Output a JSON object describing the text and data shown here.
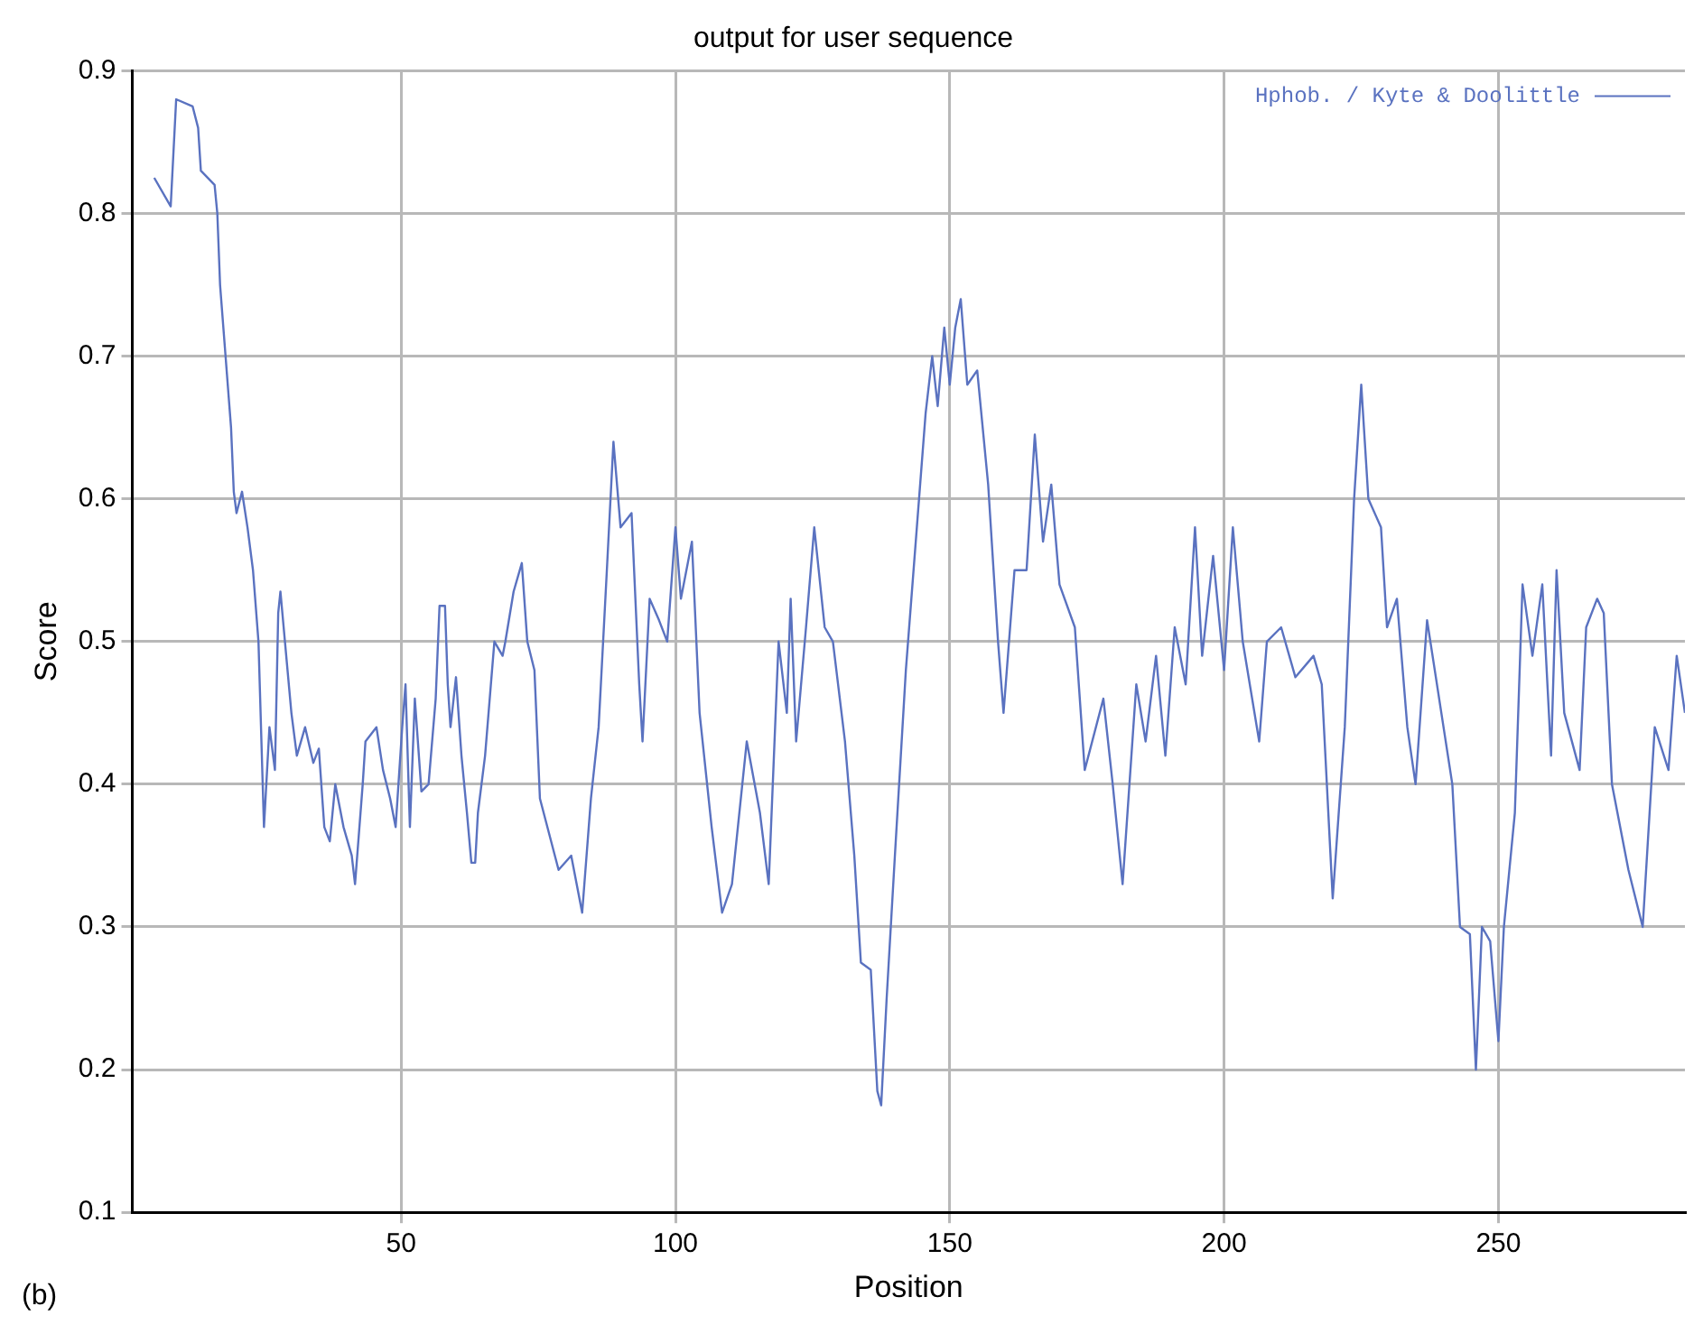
{
  "chart_data": {
    "type": "line",
    "title": "output for user sequence",
    "xlabel": "Position",
    "ylabel": "Score",
    "annotations": [
      "(b)"
    ],
    "xlim": [
      1,
      284
    ],
    "xticks": [
      50,
      100,
      150,
      200,
      250
    ],
    "ylim": [
      0.1,
      0.9
    ],
    "yticks": [
      0.1,
      0.2,
      0.3,
      0.4,
      0.5,
      0.6,
      0.7,
      0.8,
      0.9
    ],
    "grid": true,
    "legend": "top right",
    "marker": "none",
    "line_style": "solid",
    "series": [
      {
        "name": "Hphob. / Kyte & Doolittle",
        "color": "#5a72c0",
        "x": [
          5,
          8,
          9,
          12,
          13,
          13.5,
          16,
          16.5,
          17,
          18,
          19,
          19.5,
          20,
          21,
          22,
          23,
          24,
          25,
          26,
          27,
          27.6,
          28,
          30,
          31,
          32.5,
          34,
          35,
          36,
          37,
          38,
          39.5,
          41,
          41.6,
          43,
          43.5,
          45.5,
          46.7,
          48,
          49,
          50.2,
          50.8,
          51.6,
          52.5,
          53.7,
          55,
          56.3,
          57,
          58,
          58.5,
          59,
          60,
          61,
          62,
          62.8,
          63.5,
          64,
          65.3,
          67,
          68.5,
          69,
          70.5,
          72,
          73,
          74.3,
          75.3,
          78.7,
          81,
          83,
          84.6,
          86,
          87.5,
          88.7,
          90,
          92,
          93.4,
          94,
          95.3,
          97,
          98.5,
          100,
          101,
          103,
          104.4,
          106.6,
          108.5,
          110.3,
          113,
          115.4,
          117,
          118.8,
          120.3,
          121,
          122,
          123.8,
          125.3,
          127.2,
          128.7,
          130.9,
          132.6,
          133.8,
          135.6,
          136.8,
          137.5,
          138.5,
          140,
          142,
          144,
          145.6,
          146.8,
          147.8,
          149,
          150,
          151,
          152,
          153.2,
          155,
          157,
          158.8,
          159.8,
          161.8,
          164,
          165.5,
          167,
          168.5,
          170,
          172.8,
          174.6,
          178,
          179.7,
          181.5,
          184,
          185.7,
          187.6,
          189.3,
          191,
          193,
          194.7,
          196,
          198,
          200,
          201.6,
          203.4,
          206.4,
          207.8,
          210.4,
          213,
          216.3,
          217.8,
          219.8,
          222,
          223.7,
          225,
          226.3,
          228.6,
          229.7,
          231.5,
          233.4,
          234.9,
          237,
          239.6,
          241.6,
          243,
          244.8,
          245.9,
          247,
          248.5,
          250,
          251,
          253,
          254.4,
          256.2,
          258,
          259.6,
          260.6,
          262,
          264.8,
          266,
          268,
          269.2,
          270.7,
          273.7,
          276.3,
          278.5,
          281,
          282.5,
          284
        ],
        "values": [
          0.825,
          0.805,
          0.88,
          0.875,
          0.86,
          0.83,
          0.82,
          0.8,
          0.75,
          0.7,
          0.65,
          0.605,
          0.59,
          0.605,
          0.58,
          0.55,
          0.5,
          0.37,
          0.44,
          0.41,
          0.52,
          0.535,
          0.45,
          0.42,
          0.44,
          0.415,
          0.425,
          0.37,
          0.36,
          0.4,
          0.37,
          0.35,
          0.33,
          0.4,
          0.43,
          0.44,
          0.41,
          0.39,
          0.37,
          0.44,
          0.47,
          0.37,
          0.46,
          0.395,
          0.4,
          0.46,
          0.525,
          0.525,
          0.47,
          0.44,
          0.475,
          0.42,
          0.38,
          0.345,
          0.345,
          0.38,
          0.42,
          0.5,
          0.49,
          0.5,
          0.535,
          0.555,
          0.5,
          0.48,
          0.39,
          0.34,
          0.35,
          0.31,
          0.39,
          0.44,
          0.55,
          0.64,
          0.58,
          0.59,
          0.47,
          0.43,
          0.53,
          0.515,
          0.5,
          0.58,
          0.53,
          0.57,
          0.45,
          0.37,
          0.31,
          0.33,
          0.43,
          0.38,
          0.33,
          0.5,
          0.45,
          0.53,
          0.43,
          0.51,
          0.58,
          0.51,
          0.5,
          0.43,
          0.35,
          0.275,
          0.27,
          0.185,
          0.175,
          0.25,
          0.35,
          0.48,
          0.58,
          0.66,
          0.7,
          0.665,
          0.72,
          0.68,
          0.72,
          0.74,
          0.68,
          0.69,
          0.61,
          0.5,
          0.45,
          0.55,
          0.55,
          0.645,
          0.57,
          0.61,
          0.54,
          0.51,
          0.41,
          0.46,
          0.4,
          0.33,
          0.47,
          0.43,
          0.49,
          0.42,
          0.51,
          0.47,
          0.58,
          0.49,
          0.56,
          0.48,
          0.58,
          0.5,
          0.43,
          0.5,
          0.51,
          0.475,
          0.49,
          0.47,
          0.32,
          0.44,
          0.6,
          0.68,
          0.6,
          0.58,
          0.51,
          0.53,
          0.44,
          0.4,
          0.515,
          0.45,
          0.4,
          0.3,
          0.295,
          0.2,
          0.3,
          0.29,
          0.22,
          0.3,
          0.38,
          0.54,
          0.49,
          0.54,
          0.42,
          0.55,
          0.45,
          0.41,
          0.51,
          0.53,
          0.52,
          0.4,
          0.34,
          0.3,
          0.44,
          0.41,
          0.49,
          0.45
        ]
      }
    ]
  }
}
